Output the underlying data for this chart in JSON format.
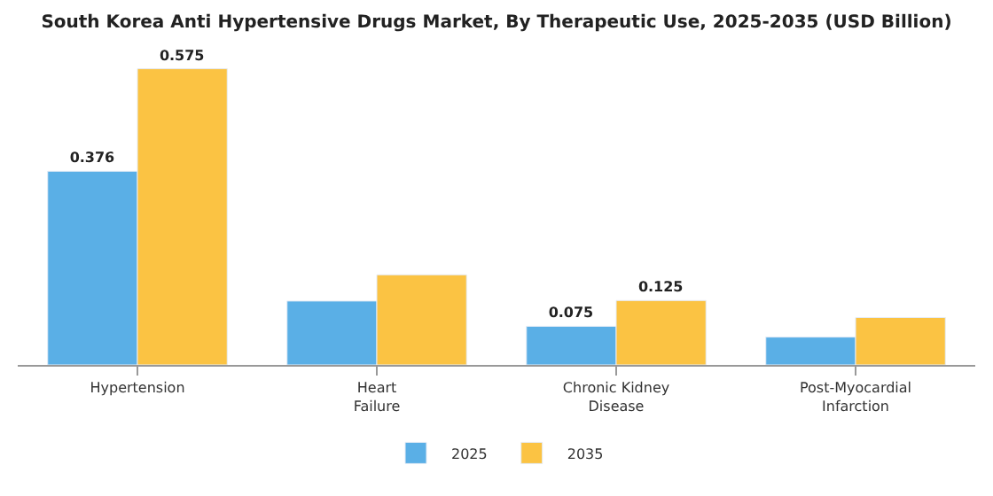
{
  "chart_data": {
    "type": "bar",
    "title": "South Korea Anti Hypertensive Drugs Market, By Therapeutic Use, 2025-2035 (USD Billion)",
    "categories": [
      "Hypertension",
      "Heart Failure",
      "Chronic Kidney Disease",
      "Post-Myocardial Infarction"
    ],
    "series": [
      {
        "name": "2025",
        "color": "#5aafe6",
        "values": [
          0.376,
          0.124,
          0.075,
          0.054
        ],
        "value_labels": [
          "0.376",
          null,
          "0.075",
          null
        ]
      },
      {
        "name": "2035",
        "color": "#fbc343",
        "values": [
          0.575,
          0.175,
          0.125,
          0.092
        ],
        "value_labels": [
          "0.575",
          null,
          "0.125",
          null
        ]
      }
    ],
    "legend": "bottom"
  }
}
